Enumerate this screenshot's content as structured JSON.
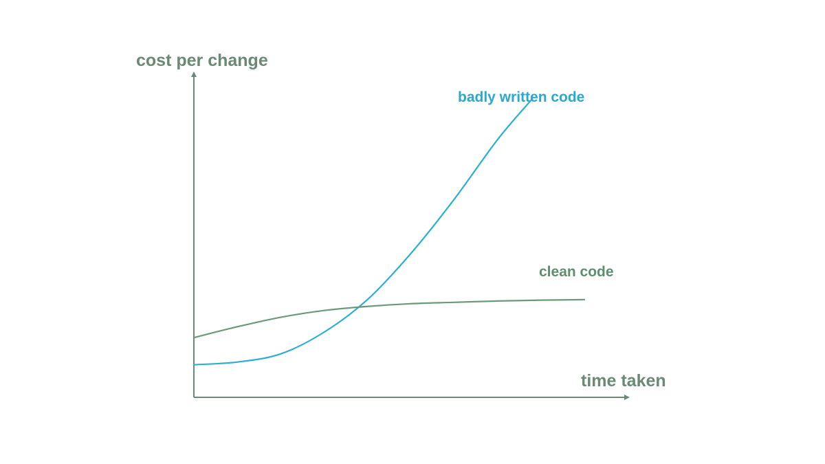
{
  "chart_data": {
    "type": "line",
    "title": "",
    "ylabel": "cost per change",
    "xlabel": "time taken",
    "xlim": [
      0,
      10
    ],
    "ylim": [
      0,
      10
    ],
    "grid": false,
    "axis_color": "#6a8a74",
    "series": [
      {
        "name": "badly written code",
        "color": "#2ab0d0",
        "label_color": "#2aa8cf",
        "x": [
          0,
          1,
          2,
          3,
          4,
          5,
          6,
          7,
          7.8
        ],
        "y": [
          1.2,
          1.3,
          1.6,
          2.4,
          3.6,
          5.3,
          7.3,
          9.5,
          11.0
        ]
      },
      {
        "name": "clean code",
        "color": "#6a9a7a",
        "label_color": "#5f8d70",
        "x": [
          0,
          1,
          2,
          3,
          4,
          5,
          6,
          7,
          8,
          9
        ],
        "y": [
          2.2,
          2.6,
          2.95,
          3.2,
          3.35,
          3.45,
          3.5,
          3.55,
          3.58,
          3.6
        ]
      }
    ]
  }
}
